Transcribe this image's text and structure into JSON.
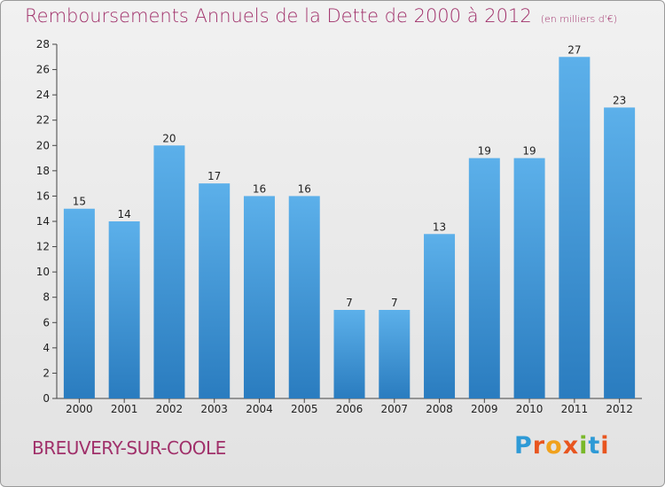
{
  "title": "Remboursements Annuels de la Dette de 2000 à 2012",
  "subtitle": "(en milliers d'€)",
  "place": "BREUVERY-SUR-COOLE",
  "logo": {
    "letters": [
      "P",
      "r",
      "o",
      "x",
      "i",
      "t",
      "i"
    ],
    "colors": [
      "#2e9ad6",
      "#e8551f",
      "#f0a11c",
      "#e8551f",
      "#79b829",
      "#2e9ad6",
      "#e8551f"
    ]
  },
  "colors": {
    "bar_light": "#5cb0ea",
    "bar_dark": "#2a7cbf",
    "title": "#a0306a"
  },
  "chart_data": {
    "type": "bar",
    "title": "Remboursements Annuels de la Dette de 2000 à 2012",
    "subtitle": "(en milliers d'€)",
    "categories": [
      "2000",
      "2001",
      "2002",
      "2003",
      "2004",
      "2005",
      "2006",
      "2007",
      "2008",
      "2009",
      "2010",
      "2011",
      "2012"
    ],
    "values": [
      15,
      14,
      20,
      17,
      16,
      16,
      7,
      7,
      13,
      19,
      19,
      27,
      23
    ],
    "ylim": [
      0,
      28
    ],
    "yticks": [
      0,
      2,
      4,
      6,
      8,
      10,
      12,
      14,
      16,
      18,
      20,
      22,
      24,
      26,
      28
    ],
    "grid": false,
    "legend": "none"
  }
}
